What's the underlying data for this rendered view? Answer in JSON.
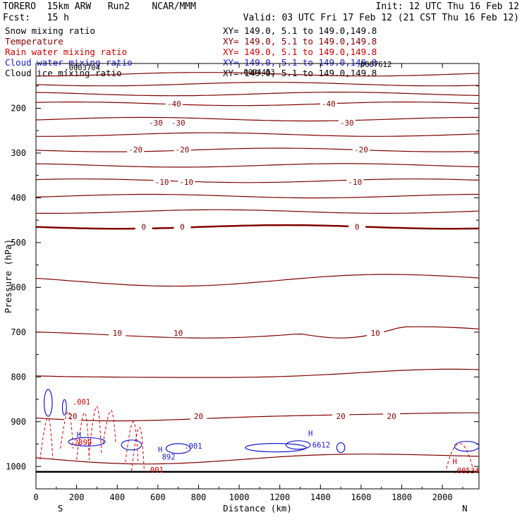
{
  "header": {
    "model_line": "TORERO  15km ARW   Run2    NCAR/MMM",
    "fcst_line": "Fcst:   15 h",
    "init_line": "Init: 12 UTC Thu 16 Feb 12",
    "valid_line": "Valid: 03 UTC Fri 17 Feb 12 (21 CST Thu 16 Feb 12)"
  },
  "colors": {
    "snow": "#000000",
    "temperature": "#800000",
    "rain": "#cc0000",
    "cloud": "#1a1acc",
    "ice": "#000000"
  },
  "chart_data": {
    "type": "cross-section",
    "xlabel": "Distance (km)",
    "ylabel": "Pressure (hPa)",
    "xlim": [
      0,
      2180
    ],
    "ylim": [
      1050,
      100
    ],
    "x_ticks": [
      0,
      200,
      400,
      600,
      800,
      1000,
      1200,
      1400,
      1600,
      1800,
      2000
    ],
    "y_ticks": [
      200,
      300,
      400,
      500,
      600,
      700,
      800,
      900,
      1000
    ],
    "endpoint_left": "S",
    "endpoint_right": "N",
    "legend": [
      {
        "name": "Snow mixing ratio",
        "xy": "XY= 149.0,  5.1 to 149.0,149.8",
        "color": "#000000"
      },
      {
        "name": "Temperature",
        "xy": "XY= 149.0,  5.1 to 149.0,149.8",
        "color": "#800000"
      },
      {
        "name": "Rain water mixing ratio",
        "xy": "XY= 149.0,  5.1 to 149.0,149.8",
        "color": "#cc0000"
      },
      {
        "name": "Cloud water mixing ratio",
        "xy": "XY= 149.0,  5.1 to 149.0,149.8",
        "color": "#1a1acc"
      },
      {
        "name": "Cloud ice mixing ratio",
        "xy": "XY= 149.0,  5.1 to 149.0,149.8",
        "color": "#000000"
      }
    ],
    "temperature_contours": [
      {
        "label": "-40",
        "pressure": 190,
        "label_x": [
          680,
          1440
        ]
      },
      {
        "label": "-30",
        "pressure": 232,
        "label_x": [
          590,
          700,
          1530
        ]
      },
      {
        "label": "-20",
        "pressure": 292,
        "label_x": [
          490,
          720,
          1600
        ]
      },
      {
        "label": "-10",
        "pressure": 365,
        "label_x": [
          620,
          740,
          1570
        ]
      },
      {
        "label": "0",
        "pressure": 465,
        "label_x": [
          530,
          720,
          1580
        ]
      },
      {
        "label": "10",
        "pressure": 702,
        "label_x": [
          400,
          700,
          1670
        ]
      },
      {
        "label": "20",
        "pressure": 888,
        "label_x": [
          180,
          800,
          1500,
          1750
        ]
      }
    ],
    "annotations": [
      {
        "text": ".0003704",
        "x": 140,
        "p": 115,
        "color": "#000000"
      },
      {
        "text": ".0004453",
        "x": 1000,
        "p": 125,
        "color": "#000000"
      },
      {
        "text": ".0007612",
        "x": 1575,
        "p": 108,
        "color": "#000000"
      },
      {
        "text": ".001",
        "x": 180,
        "p": 862,
        "color": "#cc0000"
      },
      {
        "text": ".001",
        "x": 540,
        "p": 1014,
        "color": "#cc0000"
      },
      {
        "text": ".00534",
        "x": 2050,
        "p": 1015,
        "color": "#cc0000"
      },
      {
        "text": ".2899",
        "x": 165,
        "p": 952,
        "color": "#cc0000"
      },
      {
        "text": ".001",
        "x": 730,
        "p": 960,
        "color": "#1a1acc"
      },
      {
        "text": "892",
        "x": 620,
        "p": 985,
        "color": "#1a1acc"
      },
      {
        "text": "6612",
        "x": 1360,
        "p": 958,
        "color": "#1a1acc"
      },
      {
        "text": "H",
        "x": 200,
        "p": 935,
        "color": "#1a1acc"
      },
      {
        "text": "H",
        "x": 600,
        "p": 968,
        "color": "#1a1acc"
      },
      {
        "text": "H",
        "x": 1340,
        "p": 932,
        "color": "#1a1acc"
      },
      {
        "text": "H",
        "x": 2050,
        "p": 995,
        "color": "#cc0000"
      }
    ]
  }
}
